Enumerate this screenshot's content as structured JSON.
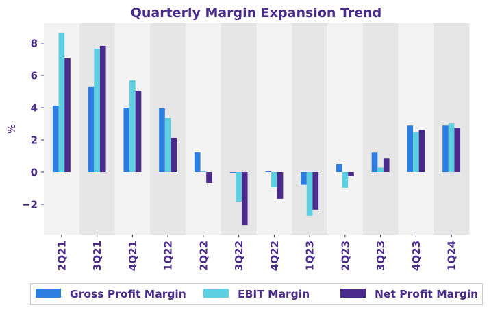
{
  "chart_data": {
    "type": "bar",
    "title": "Quarterly Margin Expansion Trend",
    "xlabel": "",
    "ylabel": "%",
    "categories": [
      "2Q21",
      "3Q21",
      "4Q21",
      "1Q22",
      "2Q22",
      "3Q22",
      "4Q22",
      "1Q23",
      "2Q23",
      "3Q23",
      "4Q23",
      "1Q24"
    ],
    "series": [
      {
        "name": "Gross Profit Margin",
        "color": "#2e7de0",
        "values": [
          4.13,
          5.28,
          4.0,
          3.96,
          1.23,
          -0.05,
          0.05,
          -0.79,
          0.51,
          1.22,
          2.88,
          2.88
        ]
      },
      {
        "name": "EBIT Margin",
        "color": "#5ecfe0",
        "values": [
          8.64,
          7.66,
          5.7,
          3.36,
          0.08,
          -1.83,
          -0.92,
          -2.71,
          -0.97,
          0.28,
          2.5,
          3.01
        ]
      },
      {
        "name": "Net Profit Margin",
        "color": "#4a2a8a",
        "values": [
          7.06,
          7.83,
          5.06,
          2.13,
          -0.68,
          -3.28,
          -1.65,
          -2.33,
          -0.24,
          0.84,
          2.63,
          2.75
        ]
      }
    ],
    "ylim": [
      -3.87,
      9.23
    ],
    "yticks": [
      -2,
      0,
      2,
      4,
      6,
      8
    ],
    "ytick_labels": [
      "−2",
      "0",
      "2",
      "4",
      "6",
      "8"
    ],
    "grid": false,
    "alternating_bands": true,
    "band_colors": [
      "#f3f3f3",
      "#e6e6e6"
    ],
    "legend_position": "bottom",
    "text_color": "#4a2a8a"
  }
}
